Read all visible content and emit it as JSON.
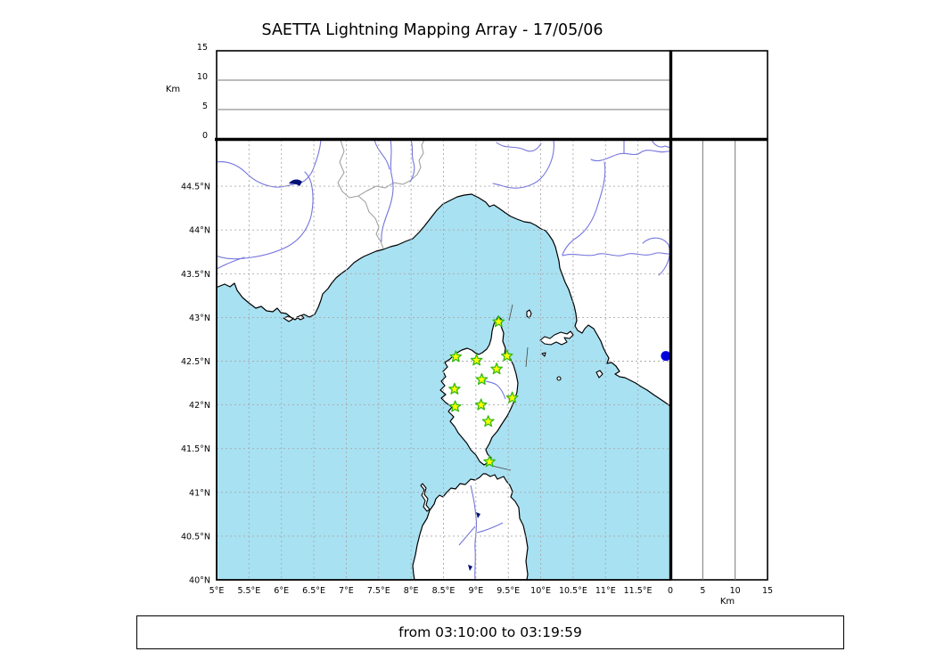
{
  "title": "SAETTA Lightning Mapping Array - 17/05/06",
  "time_range": {
    "text": "from 03:10:00 to 03:19:59",
    "from": "03:10:00",
    "to": "03:19:59"
  },
  "altitude_axis": {
    "label": "Km",
    "tick_values": [
      0,
      5,
      10,
      15
    ],
    "tick_labels": [
      "0",
      "5",
      "10",
      "15"
    ],
    "range_km": [
      0,
      15
    ]
  },
  "map_axes": {
    "lon_tick_values": [
      5,
      5.5,
      6,
      6.5,
      7,
      7.5,
      8,
      8.5,
      9,
      9.5,
      10,
      10.5,
      11,
      11.5
    ],
    "lon_tick_labels": [
      "5°E",
      "5.5°E",
      "6°E",
      "6.5°E",
      "7°E",
      "7.5°E",
      "8°E",
      "8.5°E",
      "9°E",
      "9.5°E",
      "10°E",
      "10.5°E",
      "11°E",
      "11.5°E"
    ],
    "lat_tick_values": [
      40,
      40.5,
      41,
      41.5,
      42,
      42.5,
      43,
      43.5,
      44,
      44.5
    ],
    "lat_tick_labels": [
      "40°N",
      "40.5°N",
      "41°N",
      "41.5°N",
      "42°N",
      "42.5°N",
      "43°N",
      "43.5°N",
      "44°N",
      "44.5°N"
    ],
    "lon_range": [
      5,
      12
    ],
    "lat_range": [
      40,
      45
    ]
  },
  "stations": [
    {
      "lon": 9.35,
      "lat": 42.95
    },
    {
      "lon": 8.69,
      "lat": 42.55
    },
    {
      "lon": 9.01,
      "lat": 42.51
    },
    {
      "lon": 9.48,
      "lat": 42.56
    },
    {
      "lon": 9.32,
      "lat": 42.41
    },
    {
      "lon": 9.09,
      "lat": 42.29
    },
    {
      "lon": 8.67,
      "lat": 42.18
    },
    {
      "lon": 9.56,
      "lat": 42.08
    },
    {
      "lon": 9.08,
      "lat": 42.0
    },
    {
      "lon": 8.68,
      "lat": 41.98
    },
    {
      "lon": 9.19,
      "lat": 41.81
    },
    {
      "lon": 9.21,
      "lat": 41.35
    }
  ],
  "sources": [
    {
      "lon": 11.93,
      "lat": 42.56
    }
  ],
  "colors": {
    "sea": "#a8e1f2",
    "land": "#ffffff",
    "river": "#7575dd",
    "country_border": "#999999",
    "grid": "#aaaaaa",
    "coastline": "#000000",
    "station_fill": "#ffff00",
    "station_stroke": "#33bb11",
    "source_dot": "#0000dd",
    "lake": "#001177",
    "frame": "#000000"
  }
}
